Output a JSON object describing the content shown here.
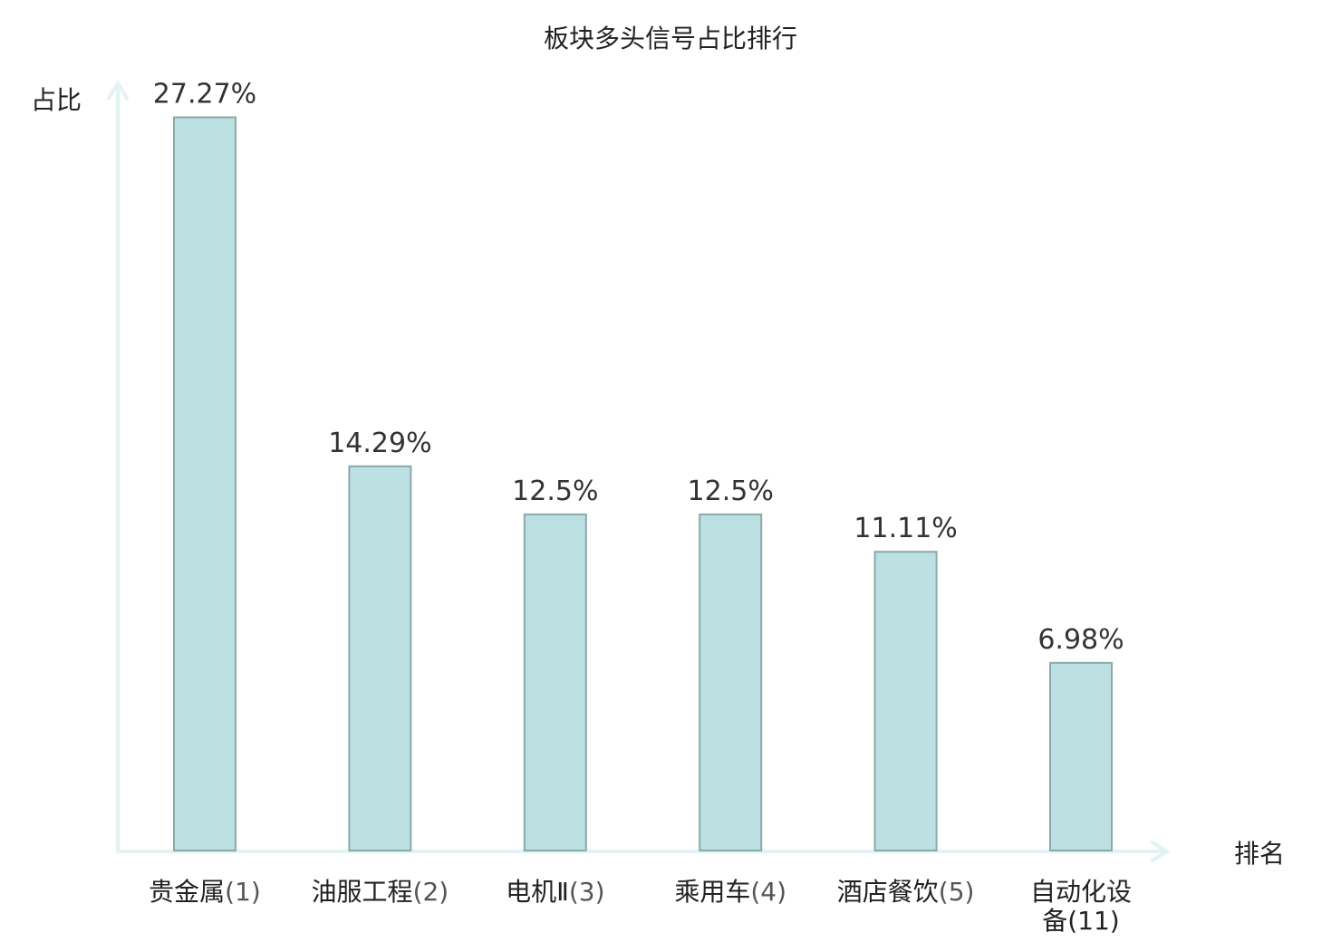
{
  "chart_data": {
    "type": "bar",
    "title": "板块多头信号占比排行",
    "ylabel": "占比",
    "xlabel": "排名",
    "ylim": [
      0,
      28.5
    ],
    "grid": false,
    "categories": [
      {
        "name": "贵金属",
        "rank": "(1)",
        "highlight": false
      },
      {
        "name": "油服工程",
        "rank": "(2)",
        "highlight": false
      },
      {
        "name": "电机Ⅱ",
        "rank": "(3)",
        "highlight": false
      },
      {
        "name": "乘用车",
        "rank": "(4)",
        "highlight": false
      },
      {
        "name": "酒店餐饮",
        "rank": "(5)",
        "highlight": false
      },
      {
        "name": "自动化设备",
        "rank": "(11)",
        "highlight": true
      }
    ],
    "values": [
      27.27,
      14.29,
      12.5,
      12.5,
      11.11,
      6.98
    ],
    "value_labels": [
      "27.27%",
      "14.29%",
      "12.5%",
      "12.5%",
      "11.11%",
      "6.98%"
    ],
    "colors": {
      "bar_fill": "#bde0e3",
      "bar_stroke": "#8aa9aa",
      "axis": "#e2f3f1",
      "highlight_text": "#e0191b"
    }
  }
}
